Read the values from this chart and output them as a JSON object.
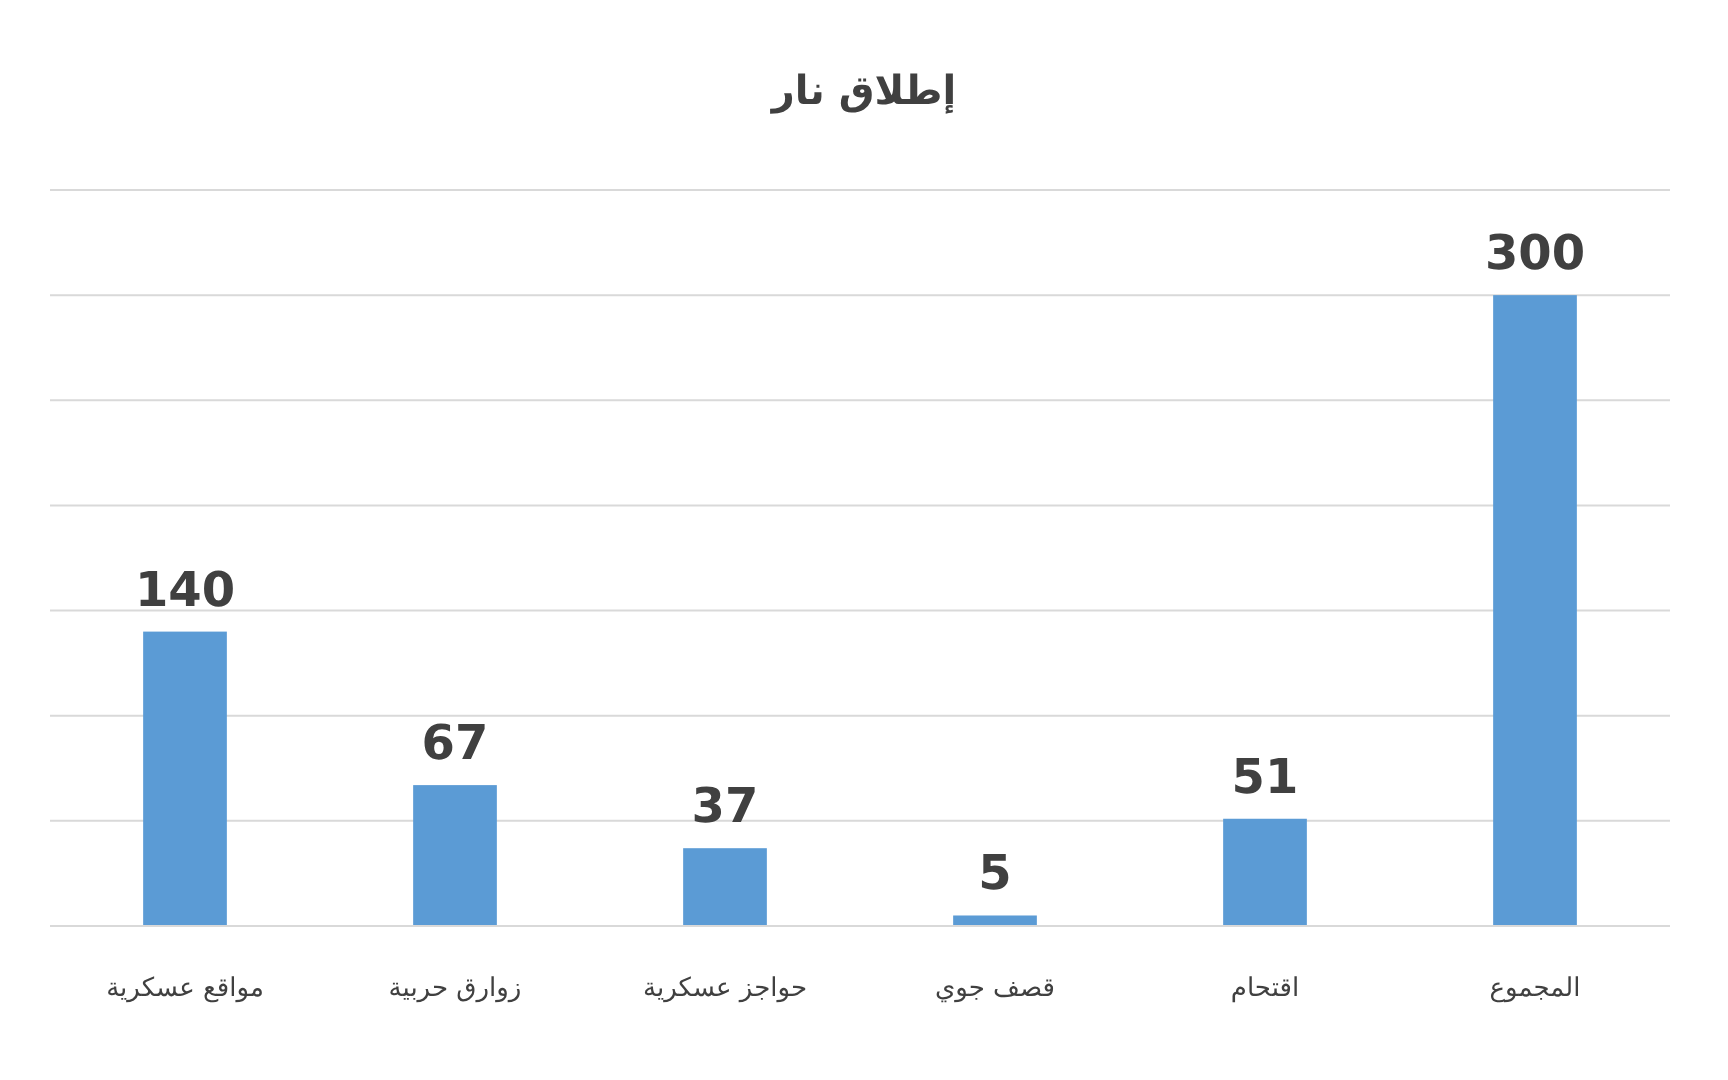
{
  "chart_data": {
    "type": "bar",
    "title": "إطلاق نار",
    "categories": [
      "مواقع عسكرية",
      "زوارق حربية",
      "حواجز عسكرية",
      "قصف جوي",
      "اقتحام",
      "المجموع"
    ],
    "values": [
      140,
      67,
      37,
      5,
      51,
      300
    ],
    "color": "#5b9bd5",
    "ylim": [
      0,
      350
    ],
    "yticks": [
      {
        "value": 0,
        "label": null
      },
      {
        "value": 50,
        "label": null
      },
      {
        "value": 100,
        "label": null
      },
      {
        "value": 150,
        "label": null
      },
      {
        "value": 200,
        "label": null
      },
      {
        "value": 250,
        "label": null
      },
      {
        "value": 300,
        "label": null
      },
      {
        "value": 350,
        "label": null
      }
    ],
    "grid": "y",
    "data_labels": true,
    "tick_labels": "x"
  }
}
